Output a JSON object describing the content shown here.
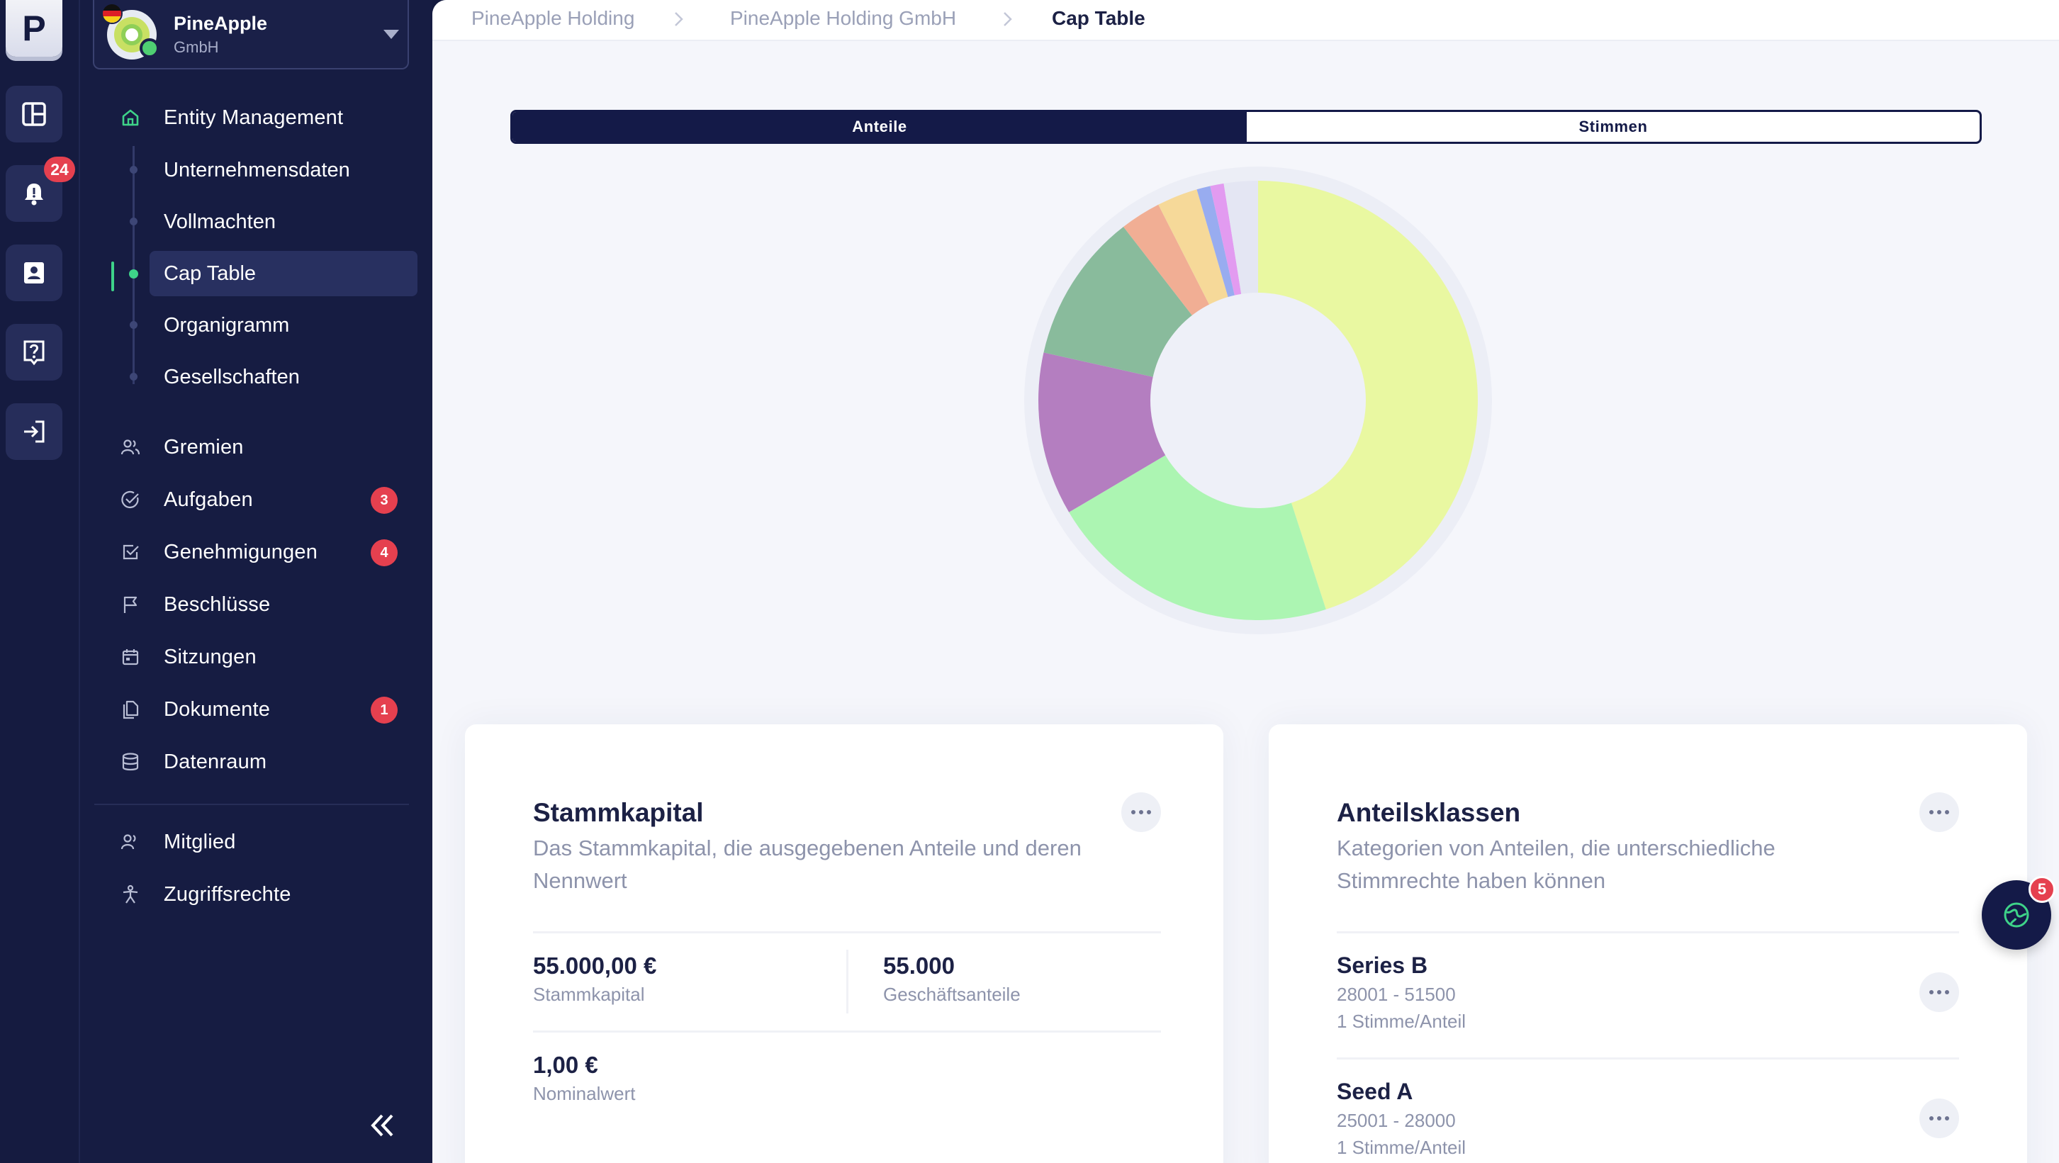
{
  "rail": {
    "logo_letter": "P",
    "notification_count": "24"
  },
  "org": {
    "name": "PineApple",
    "subtitle": "GmbH"
  },
  "sidebar": {
    "entity_management": "Entity Management",
    "sub_items": [
      "Unternehmensdaten",
      "Vollmachten",
      "Cap Table",
      "Organigramm",
      "Gesellschaften"
    ],
    "items": [
      {
        "label": "Gremien",
        "count": ""
      },
      {
        "label": "Aufgaben",
        "count": "3"
      },
      {
        "label": "Genehmigungen",
        "count": "4"
      },
      {
        "label": "Beschlüsse",
        "count": ""
      },
      {
        "label": "Sitzungen",
        "count": ""
      },
      {
        "label": "Dokumente",
        "count": "1"
      },
      {
        "label": "Datenraum",
        "count": ""
      }
    ],
    "bottom_items": [
      "Mitglied",
      "Zugriffsrechte"
    ]
  },
  "breadcrumb": [
    "PineApple Holding",
    "PineApple Holding GmbH",
    "Cap Table"
  ],
  "toggle": {
    "active": "Anteile",
    "inactive": "Stimmen"
  },
  "chart_data": {
    "type": "pie",
    "title": "",
    "note": "donut chart, no labels; shares estimated from slice angles",
    "values": [
      45.0,
      21.5,
      12.0,
      11.0,
      3.0,
      3.0,
      1.0,
      1.0,
      2.5
    ],
    "colors": [
      "#e9f8a1",
      "#acf5b2",
      "#b47ec0",
      "#89bb9c",
      "#f1ae94",
      "#f6d999",
      "#98acf0",
      "#e29bf0",
      "#e4e6f3"
    ]
  },
  "stammkapital": {
    "title": "Stammkapital",
    "description": "Das Stammkapital, die ausgegebenen Anteile und deren Nennwert",
    "capital_value": "55.000,00 €",
    "capital_label": "Stammkapital",
    "shares_value": "55.000",
    "shares_label": "Geschäftsanteile",
    "nominal_value": "1,00 €",
    "nominal_label": "Nominalwert"
  },
  "anteilsklassen": {
    "title": "Anteilsklassen",
    "description": "Kategorien von Anteilen, die unterschiedliche Stimmrechte haben können",
    "classes": [
      {
        "name": "Series B",
        "range": "28001 - 51500",
        "votes": "1 Stimme/Anteil"
      },
      {
        "name": "Seed A",
        "range": "25001 - 28000",
        "votes": "1 Stimme/Anteil"
      }
    ]
  },
  "fab": {
    "badge": "5"
  },
  "colors": {
    "navy": "#141a48",
    "accent_green": "#3ed389",
    "badge_red": "#e5404f"
  }
}
